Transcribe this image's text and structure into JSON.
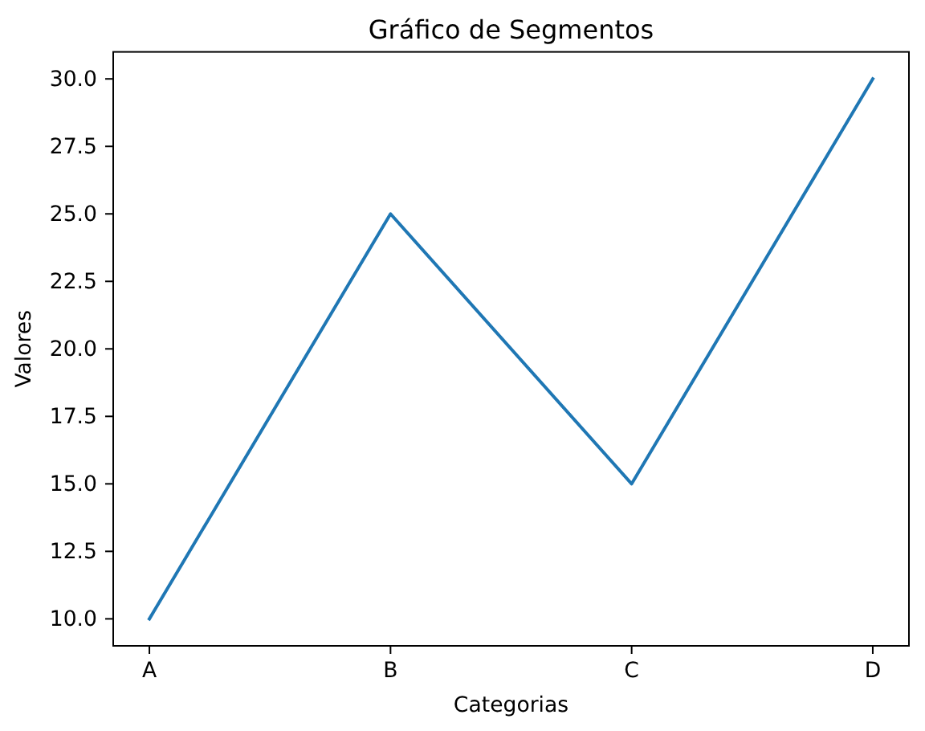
{
  "chart_data": {
    "type": "line",
    "title": "Gráfico de Segmentos",
    "xlabel": "Categorias",
    "ylabel": "Valores",
    "categories": [
      "A",
      "B",
      "C",
      "D"
    ],
    "series": [
      {
        "color": "#1f77b4",
        "values": [
          10,
          25,
          15,
          30
        ]
      }
    ],
    "ylim": [
      9,
      31
    ],
    "yticks": [
      {
        "value": 10,
        "label": "10.0"
      },
      {
        "value": 12.5,
        "label": "12.5"
      },
      {
        "value": 15,
        "label": "15.0"
      },
      {
        "value": 17.5,
        "label": "17.5"
      },
      {
        "value": 20,
        "label": "20.0"
      },
      {
        "value": 22.5,
        "label": "22.5"
      },
      {
        "value": 25,
        "label": "25.0"
      },
      {
        "value": 27.5,
        "label": "27.5"
      },
      {
        "value": 30,
        "label": "30.0"
      }
    ],
    "grid": false,
    "marker": "none",
    "line_style": "solid"
  }
}
